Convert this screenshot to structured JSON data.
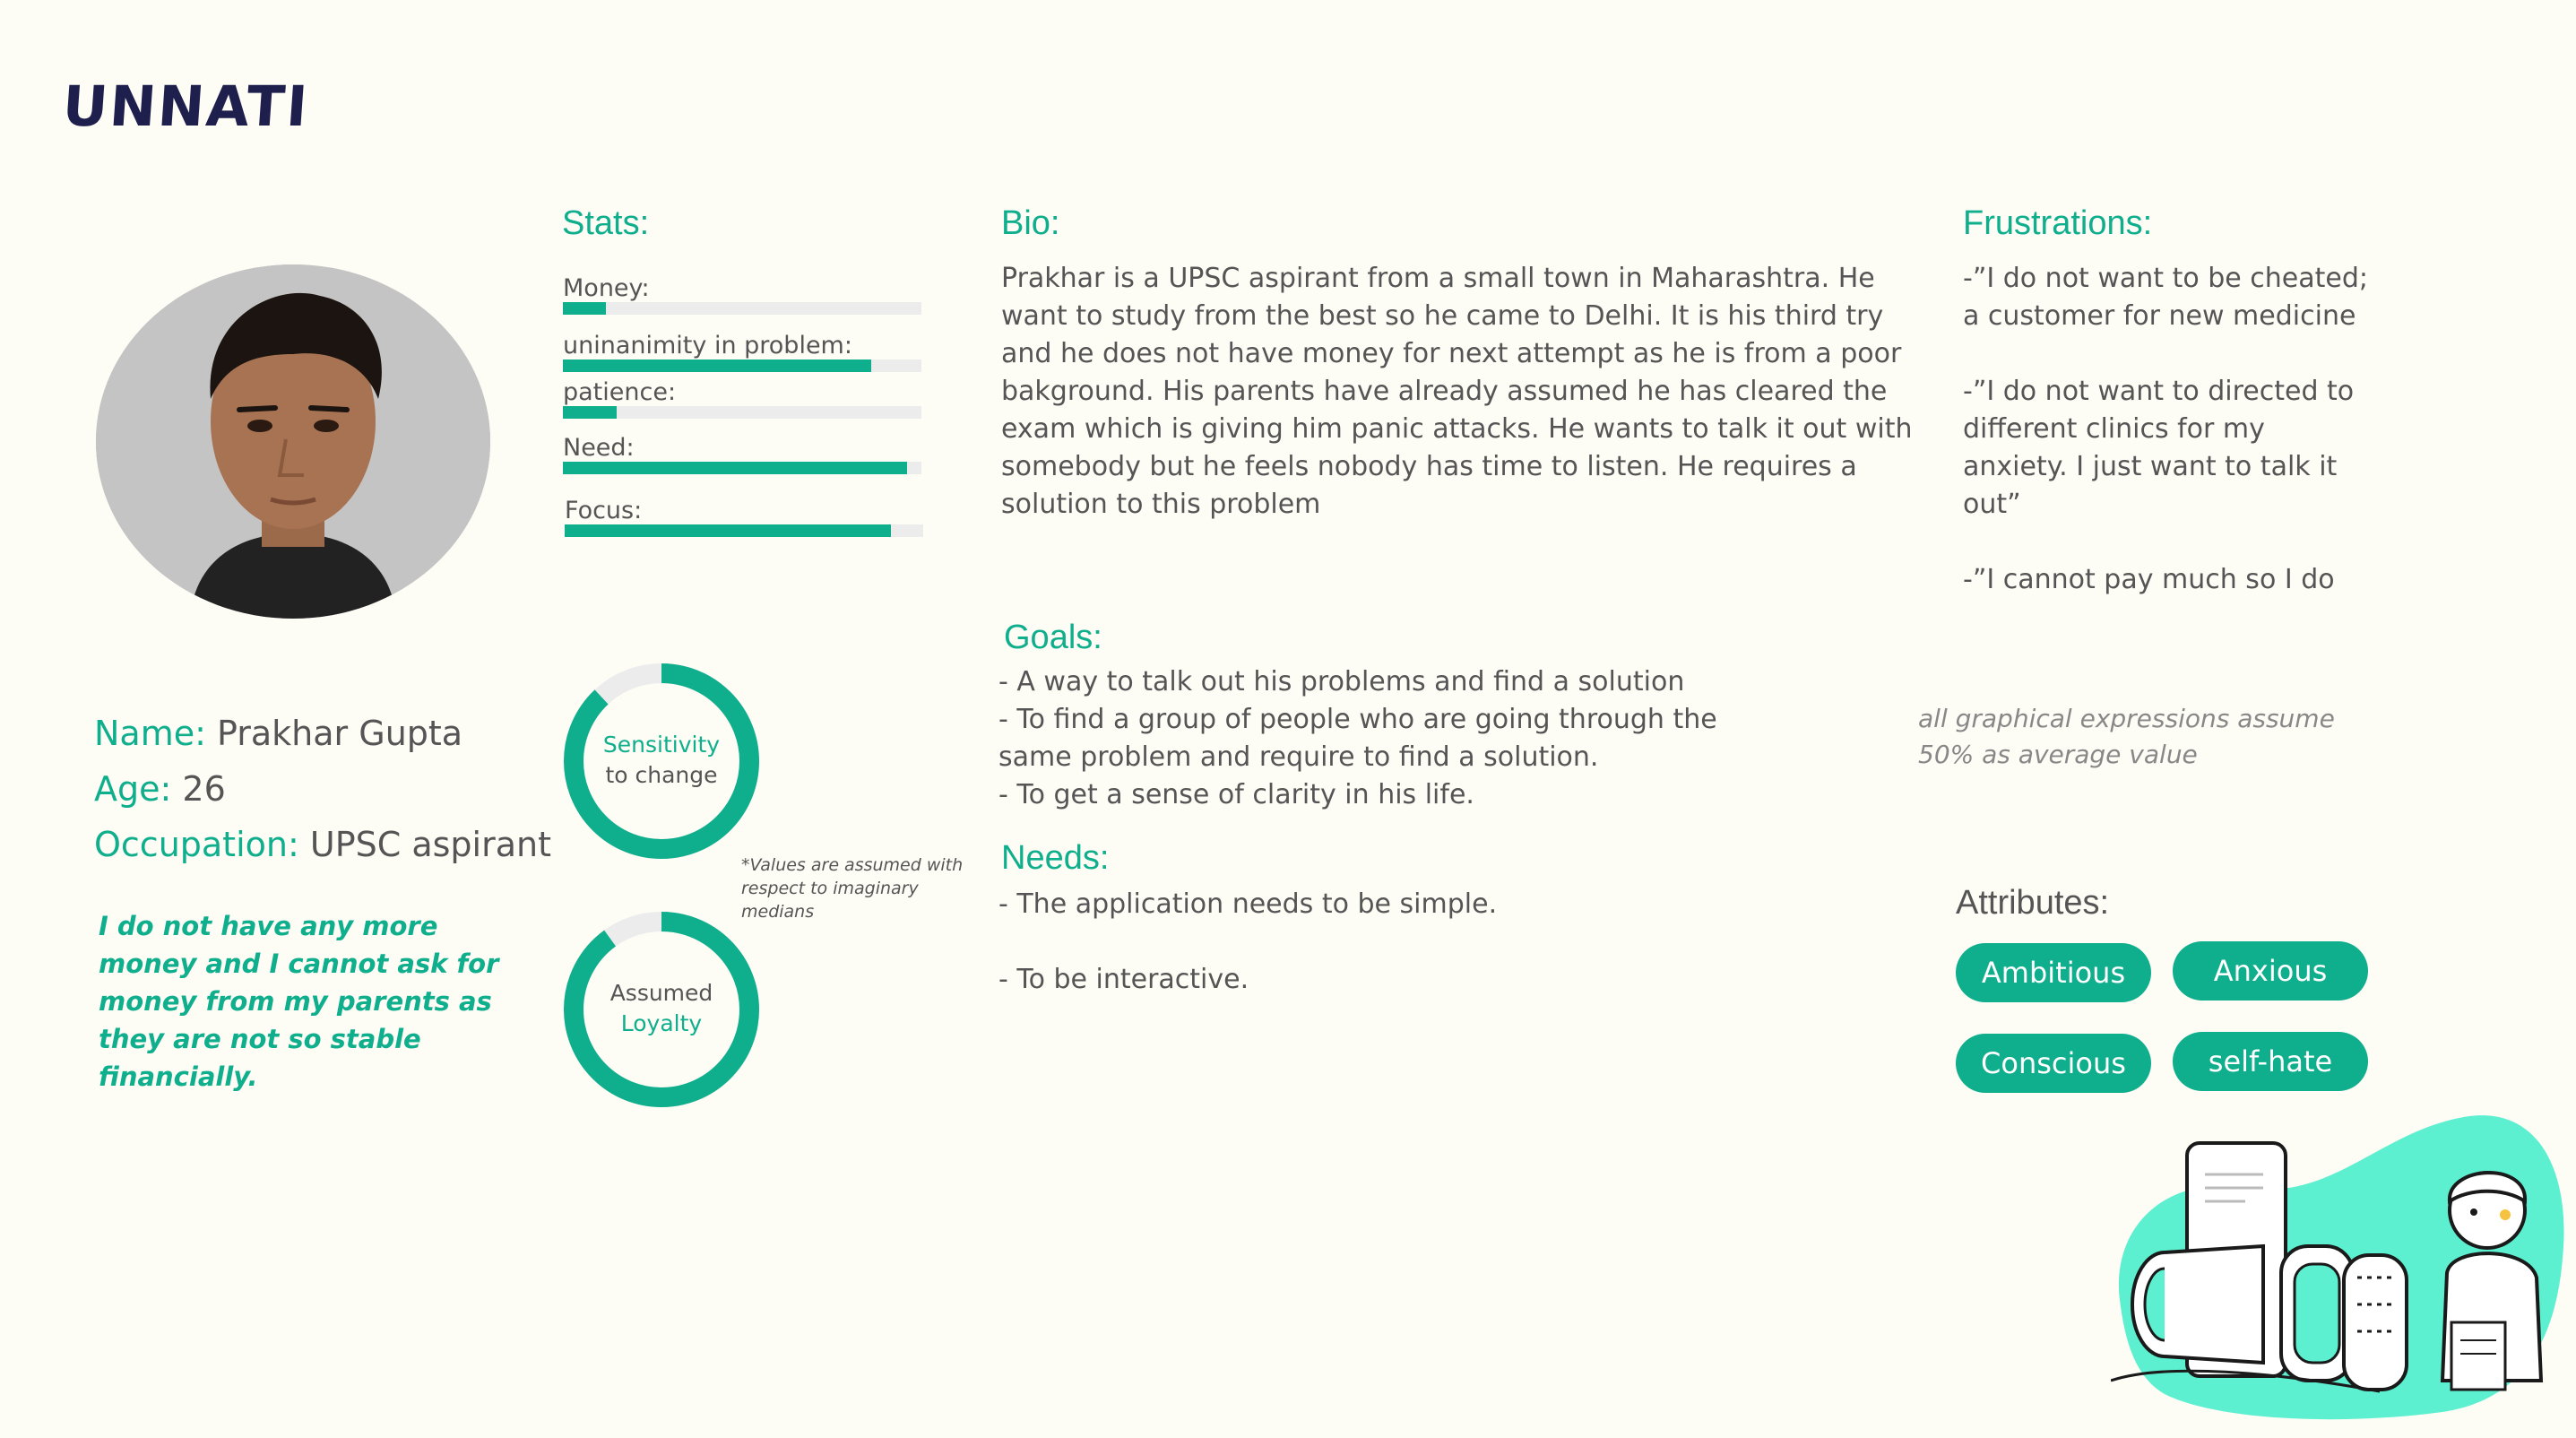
{
  "brand": {
    "logo_text": "UNNATI"
  },
  "profile": {
    "name_label": "Name:",
    "name": "Prakhar Gupta",
    "age_label": "Age:",
    "age": "26",
    "occupation_label": "Occupation:",
    "occupation": "UPSC aspirant",
    "quote": "I do not have any more money and I cannot ask for money from my parents as they are not so stable financially."
  },
  "stats": {
    "heading": "Stats:",
    "items": [
      {
        "label": "Money:",
        "value": 0.12
      },
      {
        "label": "uninanimity in problem:",
        "value": 0.86
      },
      {
        "label": "patience:",
        "value": 0.15
      },
      {
        "label": "Need:",
        "value": 0.96
      },
      {
        "label": "Focus:",
        "value": 0.91
      }
    ]
  },
  "rings": [
    {
      "line1": "Sensitivity",
      "line2": "to change",
      "value": 0.88
    },
    {
      "line1": "Assumed",
      "line2": "Loyalty",
      "value": 0.9
    }
  ],
  "rings_note": "*Values  are assumed with respect to imaginary medians",
  "bio": {
    "heading": "Bio:",
    "text": "Prakhar is a UPSC aspirant from a small town in Maharashtra. He want to study from the best so he came to Delhi. It is his third try and he does not have money for next attempt as he is from a poor bakground. His parents have already assumed he has cleared the exam which is giving him panic attacks. He wants to talk it out with somebody but he feels nobody has time to listen. He requires a solution to this problem"
  },
  "goals": {
    "heading": "Goals:",
    "items": [
      "- A way to talk out his problems and find a solution",
      "- To find a group of people who are going through the same problem and require to find a solution.",
      "- To get a sense of clarity in his life."
    ]
  },
  "needs": {
    "heading": "Needs:",
    "items": [
      " - The application needs to be simple.",
      "- To be interactive."
    ]
  },
  "frustrations": {
    "heading": "Frustrations:",
    "items": [
      "-”I do not want to be cheated; to be a customer for new medicine",
      "-”I do not want to directed to different clinics for my anxiety. I just want to talk it out”",
      "-”I cannot pay much so I do not want it to be paid”"
    ]
  },
  "assumption_note": "all graphical expressions assume 50% as average value",
  "attributes": {
    "heading": "Attributes:",
    "items": [
      "Ambitious",
      "Anxious",
      "Conscious",
      "self-hate"
    ]
  },
  "colors": {
    "accent": "#0fae8c",
    "dark": "#1f1f4e",
    "illustration": "#5cf0d0"
  }
}
